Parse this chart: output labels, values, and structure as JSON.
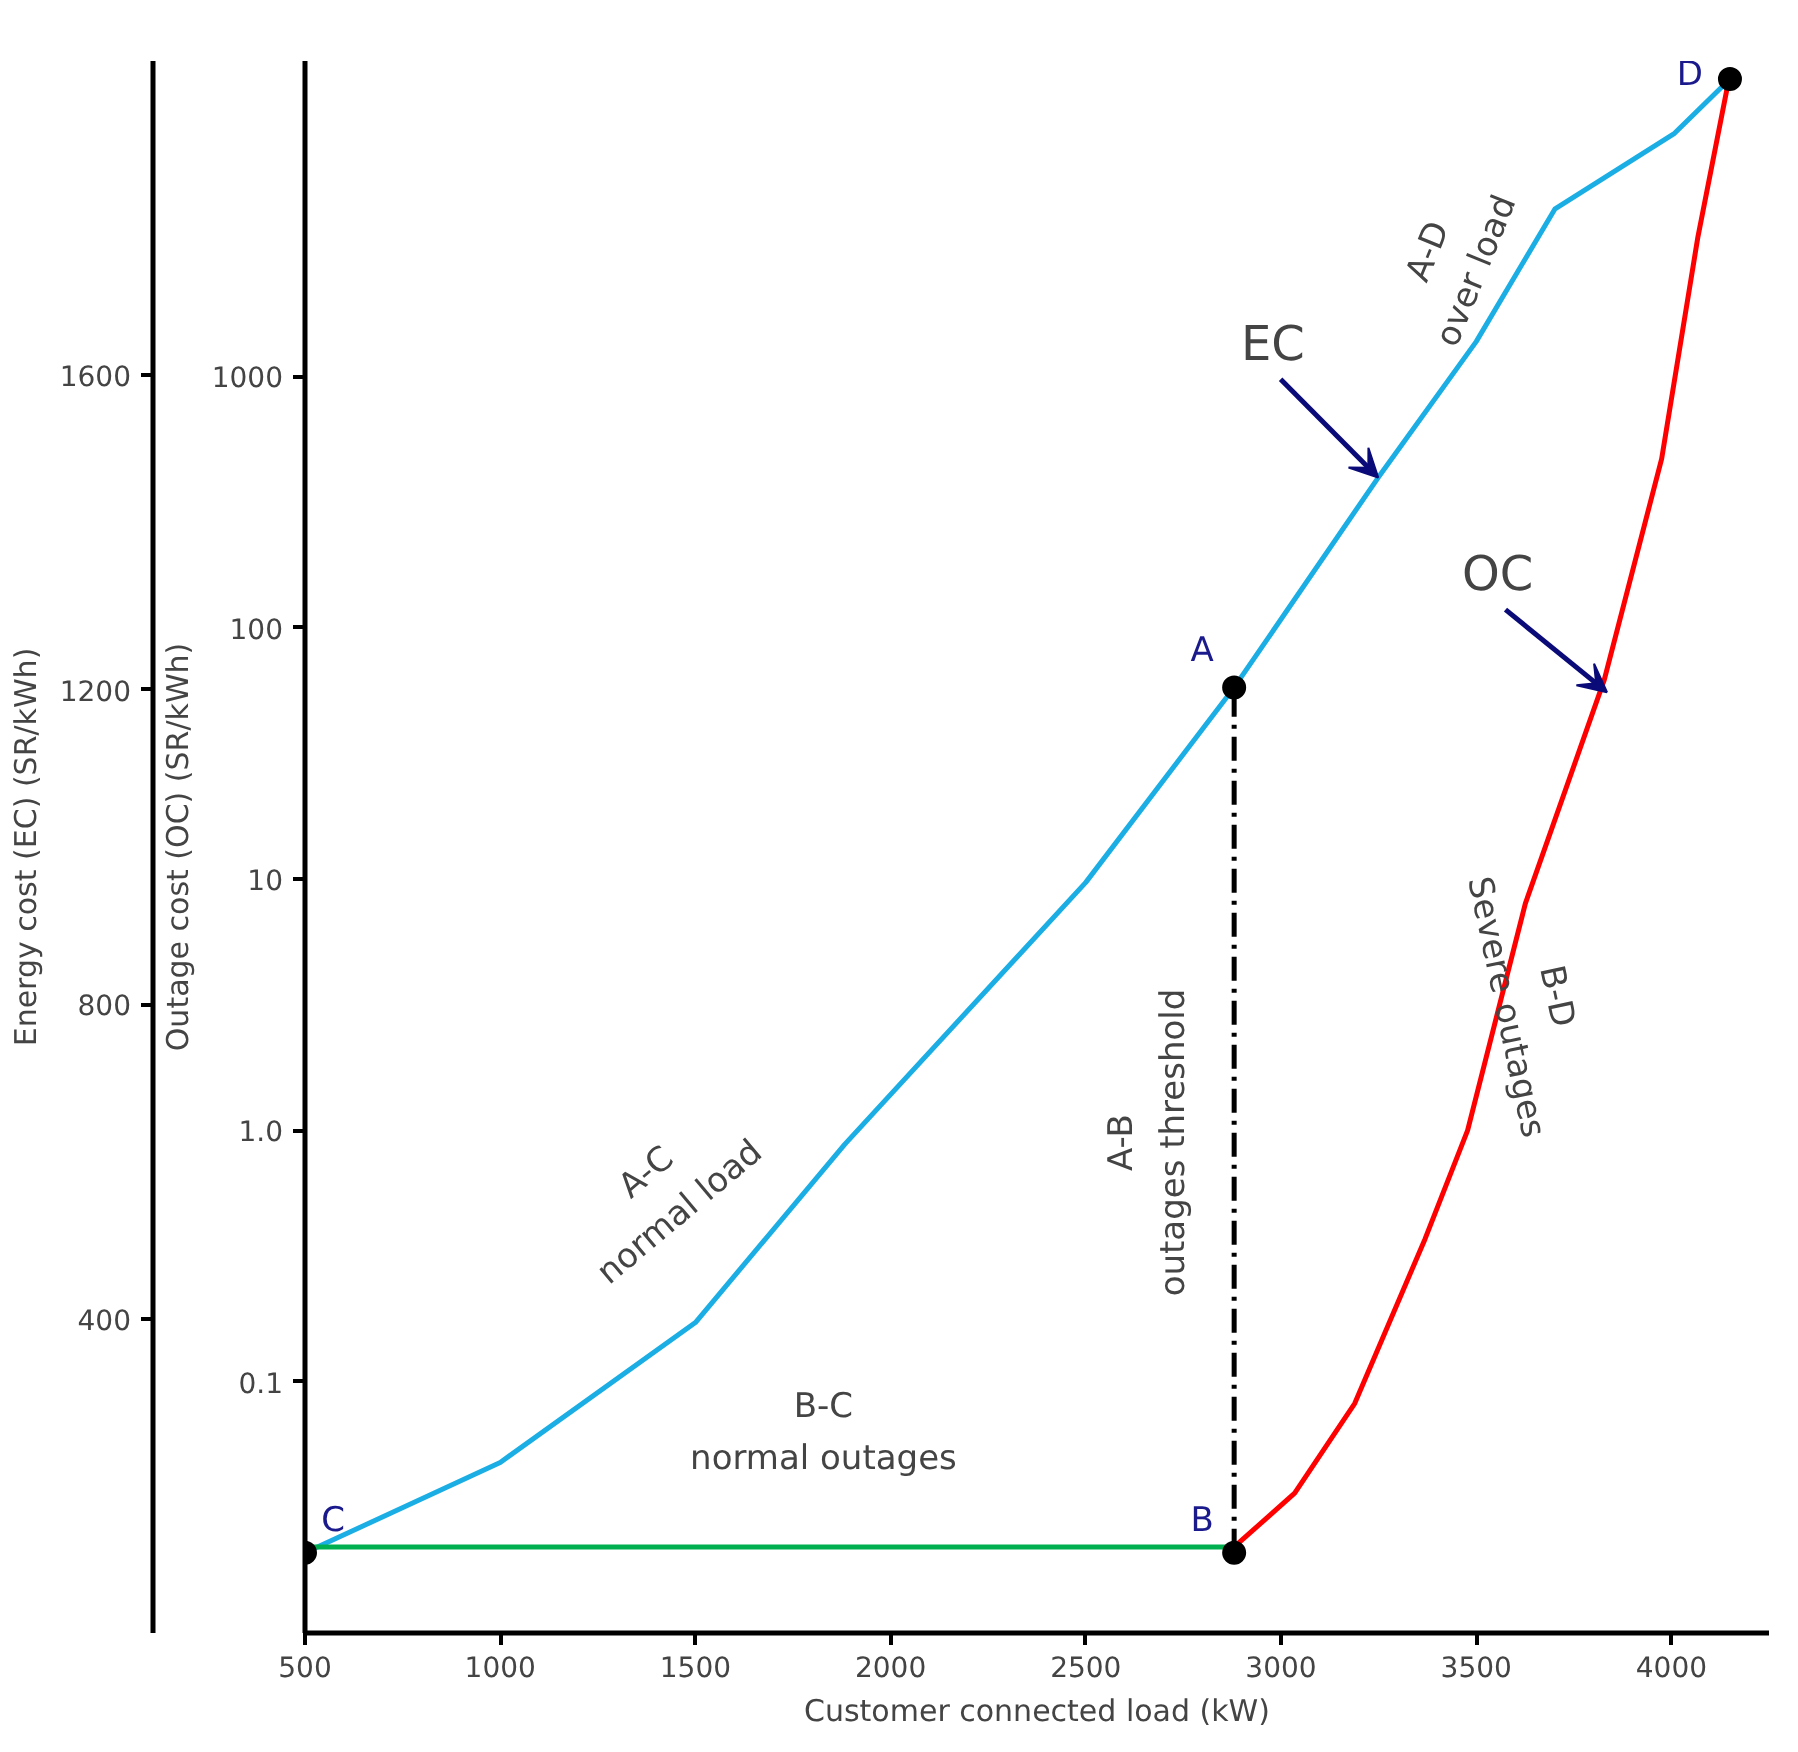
{
  "chart_data": {
    "type": "line",
    "xlabel": "Customer connected load (kW)",
    "ylabel": "Energy cost (EC) (SR/kWh)",
    "y2label": "Outage cost (OC) (SR/kWh)",
    "xlim": [
      500,
      4250
    ],
    "xticks": [
      500,
      1000,
      1500,
      2000,
      2500,
      3000,
      3500,
      4000
    ],
    "ylim": [
      0,
      2000
    ],
    "yticks": [
      400,
      800,
      1200,
      1600
    ],
    "y2lim": [
      0.01,
      18000
    ],
    "y2ticks": [
      0.1,
      {
        "value": 1,
        "label": "1.0"
      },
      10,
      100,
      1000
    ],
    "log": "y2",
    "grid": false,
    "series": [
      {
        "color": "#1aaee5",
        "x": [
          500,
          1000,
          1500,
          1883,
          2500,
          2880,
          3249,
          3500,
          3702,
          4008,
          4150
        ],
        "values": [
          102,
          217,
          395,
          622,
          955,
          1203,
          1470,
          1643,
          1812,
          1908,
          1977
        ]
      },
      {
        "color": "#ff0000",
        "axis": "y2",
        "x": [
          2880,
          3035,
          3189,
          3369,
          3478,
          3626,
          3828,
          3975,
          4068,
          4150
        ],
        "values": [
          0.022,
          0.036,
          0.082,
          0.37,
          1.0,
          8,
          62,
          470,
          3600,
          16000
        ]
      },
      {
        "color": "#00b050",
        "axis": "y2",
        "x": [
          500,
          2880
        ],
        "values": [
          0.022,
          0.022
        ]
      },
      {
        "color": "#000000",
        "line_style": "dashed",
        "x": [
          2880,
          2880
        ],
        "values": [
          102,
          1203
        ]
      },
      {
        "type": "scatter",
        "color": "#000000",
        "marker": "circle",
        "x": [
          500,
          2880,
          2880,
          4150
        ],
        "values": [
          102,
          1203,
          102,
          1977
        ]
      }
    ],
    "annotations": [
      "A-C\nnormal load",
      "B-C\nnormal outages",
      "A-B\noutages threshold",
      "A-D\nover load",
      "B-D\nSevere outages",
      {
        "text": "EC",
        "x": 3249,
        "y": 1470
      },
      {
        "text": "OC",
        "x": 3835,
        "y": 1197
      },
      {
        "text": "A",
        "x": 2880,
        "y": 1203
      },
      {
        "text": "B",
        "x": 2880,
        "y": 102
      },
      {
        "text": "C",
        "x": 500,
        "y": 102
      },
      {
        "text": "D",
        "x": 4150,
        "y": 1977
      }
    ]
  }
}
